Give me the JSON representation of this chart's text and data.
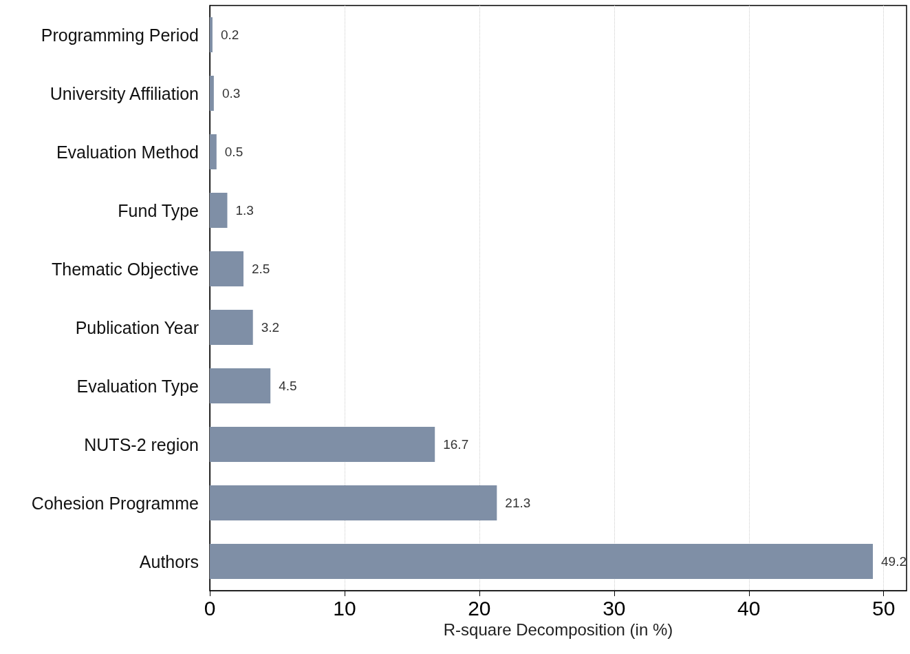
{
  "chart_data": {
    "type": "bar",
    "orientation": "horizontal",
    "xlabel": "R-square Decomposition (in %)",
    "categories": [
      "Programming Period",
      "University Affiliation",
      "Evaluation Method",
      "Fund Type",
      "Thematic Objective",
      "Publication Year",
      "Evaluation Type",
      "NUTS-2 region",
      "Cohesion Programme",
      "Authors"
    ],
    "values": [
      0.2,
      0.3,
      0.5,
      1.3,
      2.5,
      3.2,
      4.5,
      16.7,
      21.3,
      49.2
    ],
    "color": "#7f8fa6",
    "xlim": [
      0,
      51.7
    ],
    "xticks": [
      0,
      10,
      20,
      30,
      40,
      50
    ],
    "grid": "x",
    "data_labels": true
  }
}
